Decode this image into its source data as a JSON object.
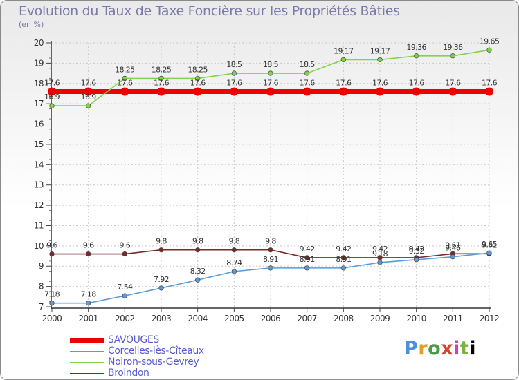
{
  "title": "Evolution du Taux de Taxe Foncière sur les Propriétés Bâties",
  "subtitle": "(en %)",
  "logo": [
    "P",
    "r",
    "o",
    "x",
    "i",
    "t",
    "i"
  ],
  "chart_data": {
    "type": "line",
    "x": [
      "2000",
      "2001",
      "2002",
      "2003",
      "2004",
      "2005",
      "2006",
      "2007",
      "2008",
      "2009",
      "2010",
      "2011",
      "2012"
    ],
    "ylim": [
      7,
      20
    ],
    "yticks": [
      "7",
      "8",
      "9",
      "10",
      "11",
      "12",
      "13",
      "14",
      "15",
      "16",
      "17",
      "18",
      "19",
      "20"
    ],
    "grid": true,
    "legend_position": "bottom-left",
    "series": [
      {
        "name": "SAVOUGES",
        "color": "#ee0000",
        "values": [
          17.6,
          17.6,
          17.6,
          17.6,
          17.6,
          17.6,
          17.6,
          17.6,
          17.6,
          17.6,
          17.6,
          17.6,
          17.6
        ],
        "labels": [
          "17.6",
          "17.6",
          "17.6",
          "17.6",
          "17.6",
          "17.6",
          "17.6",
          "17.6",
          "17.6",
          "17.6",
          "17.6",
          "17.6",
          "17.6"
        ]
      },
      {
        "name": "Corcelles-lès-Cîteaux",
        "color": "#5b9bd5",
        "values": [
          7.18,
          7.18,
          7.54,
          7.92,
          8.32,
          8.74,
          8.91,
          8.91,
          8.91,
          9.18,
          9.32,
          9.46,
          9.65
        ],
        "labels": [
          "7.18",
          "7.18",
          "7.54",
          "7.92",
          "8.32",
          "8.74",
          "8.91",
          "8.91",
          "8.91",
          "9.18",
          "9.32",
          "9.46",
          "9.65"
        ]
      },
      {
        "name": "Noiron-sous-Gevrey",
        "color": "#7fd44a",
        "values": [
          16.9,
          16.9,
          18.25,
          18.25,
          18.25,
          18.5,
          18.5,
          18.5,
          19.17,
          19.17,
          19.36,
          19.36,
          19.65
        ],
        "labels": [
          "16.9",
          "16.9",
          "18.25",
          "18.25",
          "18.25",
          "18.5",
          "18.5",
          "18.5",
          "19.17",
          "19.17",
          "19.36",
          "19.36",
          "19.65"
        ]
      },
      {
        "name": "Broindon",
        "color": "#7a2a2a",
        "values": [
          9.6,
          9.6,
          9.6,
          9.8,
          9.8,
          9.8,
          9.8,
          9.42,
          9.42,
          9.42,
          9.42,
          9.61,
          9.61
        ],
        "labels": [
          "9.6",
          "9.6",
          "9.6",
          "9.8",
          "9.8",
          "9.8",
          "9.8",
          "9.42",
          "9.42",
          "9.42",
          "9.42",
          "9.61",
          "9.61"
        ]
      }
    ]
  }
}
